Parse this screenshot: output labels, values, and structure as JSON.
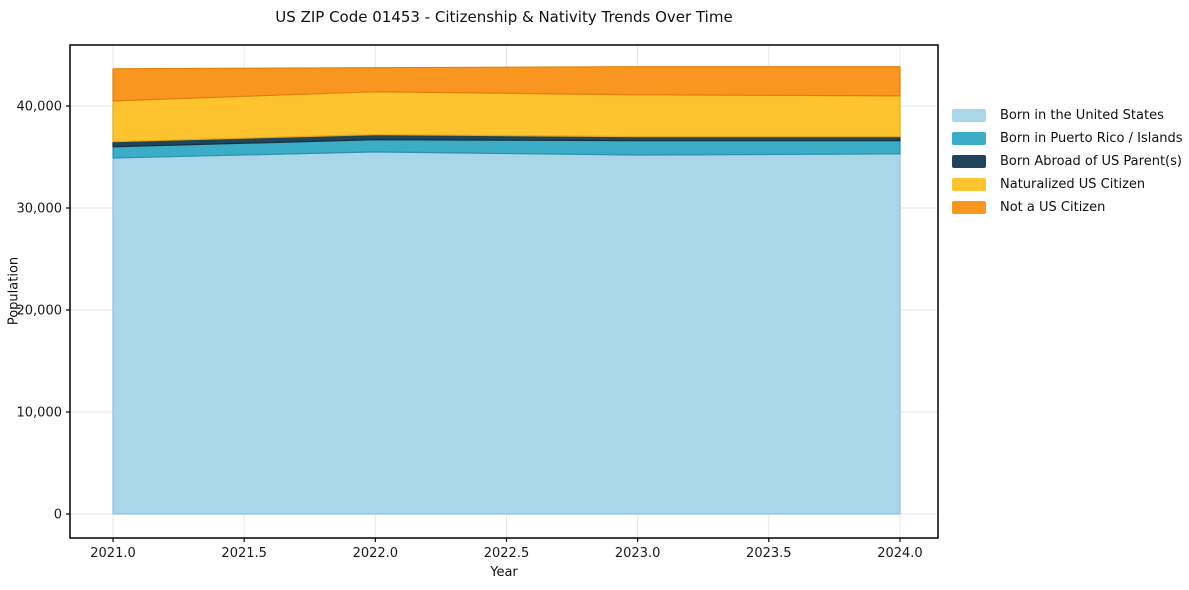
{
  "chart_data": {
    "type": "area",
    "stacked": true,
    "title": "US ZIP Code 01453 - Citizenship & Nativity Trends Over Time",
    "xlabel": "Year",
    "ylabel": "Population",
    "x": [
      2021,
      2022,
      2023,
      2024
    ],
    "series": [
      {
        "name": "Born in the United States",
        "color": "#a9d6e9",
        "edge_color": "#8fc3dc",
        "values": [
          34900,
          35500,
          35200,
          35300
        ]
      },
      {
        "name": "Born in Puerto Rico / Islands",
        "color": "#3badc6",
        "edge_color": "#2b93aa",
        "values": [
          1100,
          1200,
          1400,
          1300
        ]
      },
      {
        "name": "Born Abroad of US Parent(s)",
        "color": "#20455a",
        "edge_color": "#152f3e",
        "values": [
          500,
          500,
          400,
          400
        ]
      },
      {
        "name": "Naturalized US Citizen",
        "color": "#fdc42f",
        "edge_color": "#e3a812",
        "values": [
          4000,
          4200,
          4100,
          4000
        ]
      },
      {
        "name": "Not a US Citizen",
        "color": "#f8961f",
        "edge_color": "#e0800d",
        "values": [
          3150,
          2350,
          2750,
          2850
        ]
      }
    ],
    "xlim": [
      2020.836,
      2024.145
    ],
    "ylim": [
      -2353,
      45980
    ],
    "xticks": {
      "values": [
        2021.0,
        2021.5,
        2022.0,
        2022.5,
        2023.0,
        2023.5,
        2024.0
      ],
      "labels": [
        "2021.0",
        "2021.5",
        "2022.0",
        "2022.5",
        "2023.0",
        "2023.5",
        "2024.0"
      ]
    },
    "yticks": {
      "values": [
        0,
        10000,
        20000,
        30000,
        40000
      ],
      "labels": [
        "0",
        "10,000",
        "20,000",
        "30,000",
        "40,000"
      ]
    },
    "grid": true,
    "grid_color": "#e7e7e7",
    "axes_color": "#000000",
    "tick_label_color": "#1a1a1a",
    "legend_position": "right"
  }
}
